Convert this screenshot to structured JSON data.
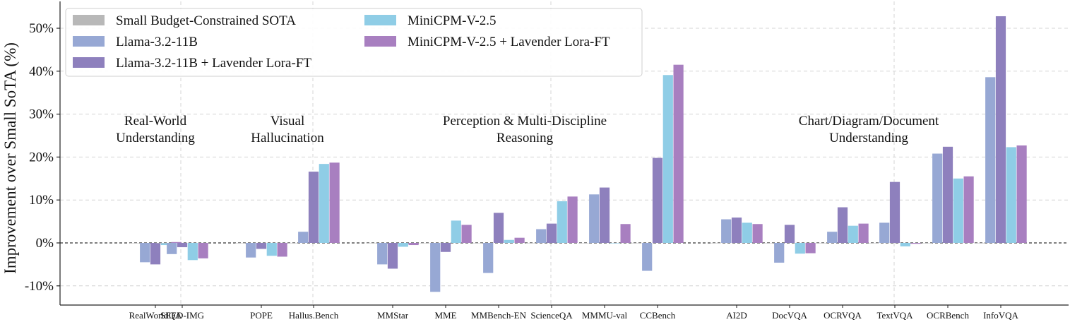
{
  "chart_data": {
    "type": "bar",
    "ylabel": "Improvement over Small SoTA (%)",
    "ylim": [
      -15,
      55
    ],
    "yticks": [
      "-10%",
      "0%",
      "10%",
      "20%",
      "30%",
      "40%",
      "50%"
    ],
    "grid": true,
    "legend_position": "top-left",
    "categories": [
      "RealWorldQA",
      "SEED-IMG",
      "POPE",
      "Hallus.Bench",
      "MMStar",
      "MME",
      "MMBench-EN",
      "ScienceQA",
      "MMMU-val",
      "CCBench",
      "AI2D",
      "DocVQA",
      "OCRVQA",
      "TextVQA",
      "OCRBench",
      "InfoVQA"
    ],
    "groups": [
      {
        "label_lines": [
          "Real-World",
          "Understanding"
        ],
        "categories": [
          "RealWorldQA",
          "SEED-IMG"
        ]
      },
      {
        "label_lines": [
          "Visual",
          "Hallucination"
        ],
        "categories": [
          "POPE",
          "Hallus.Bench"
        ]
      },
      {
        "label_lines": [
          "Perception & Multi-Discipline",
          "Reasoning"
        ],
        "categories": [
          "MMStar",
          "MME",
          "MMBench-EN",
          "ScienceQA",
          "MMMU-val",
          "CCBench"
        ]
      },
      {
        "label_lines": [
          "Chart/Diagram/Document",
          "Understanding"
        ],
        "categories": [
          "AI2D",
          "DocVQA",
          "OCRVQA",
          "TextVQA",
          "OCRBench",
          "InfoVQA"
        ]
      }
    ],
    "series": [
      {
        "name": "Small Budget-Constrained SOTA",
        "color": "#b8b8b8",
        "values": [
          0,
          0,
          0,
          0,
          0,
          0,
          0,
          0,
          0,
          0,
          0,
          0,
          0,
          0,
          0,
          0
        ]
      },
      {
        "name": "Llama-3.2-11B",
        "color": "#97a8d4",
        "values": [
          -4.5,
          -2.6,
          -3.4,
          2.6,
          -5.0,
          -11.4,
          -7.0,
          3.2,
          11.3,
          -6.5,
          5.5,
          -4.6,
          2.6,
          4.7,
          20.8,
          38.6
        ]
      },
      {
        "name": "Llama-3.2-11B + Lavender Lora-FT",
        "color": "#8e80bd",
        "values": [
          -5.0,
          -1.0,
          -1.4,
          16.6,
          -6.0,
          -2.1,
          7.0,
          4.5,
          12.9,
          19.8,
          5.9,
          4.2,
          8.3,
          14.2,
          22.4,
          52.8
        ]
      },
      {
        "name": "MiniCPM-V-2.5",
        "color": "#8fcde6",
        "values": [
          -0.5,
          -4.0,
          -3.0,
          18.4,
          -0.9,
          5.2,
          0.7,
          9.7,
          -0.1,
          39.1,
          4.7,
          -2.5,
          4.0,
          -0.8,
          15.0,
          22.3
        ]
      },
      {
        "name": "MiniCPM-V-2.5 + Lavender Lora-FT",
        "color": "#a87fc0",
        "values": [
          0.2,
          -3.6,
          -3.2,
          18.7,
          -0.5,
          4.2,
          1.2,
          10.8,
          4.4,
          41.5,
          4.4,
          -2.4,
          4.5,
          -0.2,
          15.5,
          22.7
        ]
      }
    ]
  }
}
